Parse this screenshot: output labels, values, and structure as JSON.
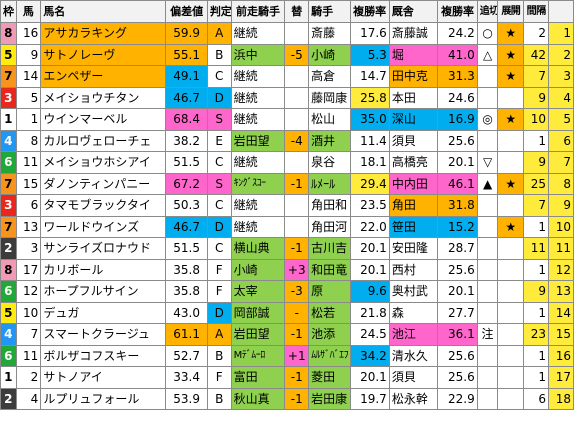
{
  "colors": {
    "waku": {
      "1": "#ffffff",
      "2": "#3c3c3c",
      "3": "#e8281e",
      "4": "#2196f3",
      "5": "#ffeb10",
      "6": "#22a838",
      "7": "#f7941d",
      "8": "#f09ab6"
    },
    "orange": "#ffb300",
    "cyan": "#00aeef",
    "pink": "#ff66cc",
    "green": "#8fd14f",
    "yellow": "#ffeb3b"
  },
  "headers": [
    "枠",
    "馬",
    "馬名",
    "偏差値",
    "判定",
    "前走騎手",
    "替",
    "騎手",
    "複勝率",
    "厩舎",
    "複勝率",
    "追切",
    "展開",
    "間隔",
    ""
  ],
  "rows": [
    {
      "waku": "8",
      "umaban": "16",
      "name": "アサカラキング",
      "hensa": "59.9",
      "hantei": "A",
      "zenso": "継続",
      "kae": "",
      "kishu": "斎藤",
      "k_rate": "17.6",
      "kyusha": "斎藤誠",
      "s_rate": "24.2",
      "oikiri": "○",
      "tenkai": "★",
      "kankaku": "2",
      "last": "1"
    },
    {
      "waku": "5",
      "umaban": "9",
      "name": "サトノレーヴ",
      "hensa": "55.1",
      "hantei": "B",
      "zenso": "浜中",
      "kae": "-5",
      "kishu": "小崎",
      "k_rate": "5.3",
      "kyusha": "堀",
      "s_rate": "41.0",
      "oikiri": "△",
      "tenkai": "★",
      "kankaku": "42",
      "last": "2"
    },
    {
      "waku": "7",
      "umaban": "14",
      "name": "エンペザー",
      "hensa": "49.1",
      "hantei": "C",
      "zenso": "継続",
      "kae": "",
      "kishu": "高倉",
      "k_rate": "14.7",
      "kyusha": "田中克",
      "s_rate": "31.3",
      "oikiri": "",
      "tenkai": "★",
      "kankaku": "7",
      "last": "3"
    },
    {
      "waku": "3",
      "umaban": "5",
      "name": "メイショウチタン",
      "hensa": "46.7",
      "hantei": "D",
      "zenso": "継続",
      "kae": "",
      "kishu": "藤岡康",
      "k_rate": "25.8",
      "kyusha": "本田",
      "s_rate": "24.6",
      "oikiri": "",
      "tenkai": "",
      "kankaku": "9",
      "last": "4"
    },
    {
      "waku": "1",
      "umaban": "1",
      "name": "ウインマーベル",
      "hensa": "68.4",
      "hantei": "S",
      "zenso": "継続",
      "kae": "",
      "kishu": "松山",
      "k_rate": "35.0",
      "kyusha": "深山",
      "s_rate": "16.9",
      "oikiri": "◎",
      "tenkai": "★",
      "kankaku": "10",
      "last": "5"
    },
    {
      "waku": "4",
      "umaban": "8",
      "name": "カルロヴェローチェ",
      "hensa": "38.2",
      "hantei": "E",
      "zenso": "岩田望",
      "kae": "-4",
      "kishu": "酒井",
      "k_rate": "11.4",
      "kyusha": "須貝",
      "s_rate": "25.6",
      "oikiri": "",
      "tenkai": "",
      "kankaku": "1",
      "last": "6"
    },
    {
      "waku": "6",
      "umaban": "11",
      "name": "メイショウホシアイ",
      "hensa": "51.5",
      "hantei": "C",
      "zenso": "継続",
      "kae": "",
      "kishu": "泉谷",
      "k_rate": "18.1",
      "kyusha": "高橋亮",
      "s_rate": "20.1",
      "oikiri": "▽",
      "tenkai": "",
      "kankaku": "9",
      "last": "7"
    },
    {
      "waku": "7",
      "umaban": "15",
      "name": "ダノンティンパニー",
      "hensa": "67.2",
      "hantei": "S",
      "zenso": "ｷﾝｸﾞｽｺｰ",
      "kae": "-1",
      "kishu": "ﾙﾒｰﾙ",
      "k_rate": "29.4",
      "kyusha": "中内田",
      "s_rate": "46.1",
      "oikiri": "▲",
      "tenkai": "★",
      "kankaku": "25",
      "last": "8"
    },
    {
      "waku": "3",
      "umaban": "6",
      "name": "タマモブラックタイ",
      "hensa": "50.3",
      "hantei": "C",
      "zenso": "継続",
      "kae": "",
      "kishu": "角田和",
      "k_rate": "23.5",
      "kyusha": "角田",
      "s_rate": "31.8",
      "oikiri": "",
      "tenkai": "",
      "kankaku": "7",
      "last": "9"
    },
    {
      "waku": "7",
      "umaban": "13",
      "name": "ワールドウインズ",
      "hensa": "46.7",
      "hantei": "D",
      "zenso": "継続",
      "kae": "",
      "kishu": "角田河",
      "k_rate": "22.0",
      "kyusha": "笹田",
      "s_rate": "15.2",
      "oikiri": "",
      "tenkai": "★",
      "kankaku": "1",
      "last": "10"
    },
    {
      "waku": "2",
      "umaban": "3",
      "name": "サンライズロナウド",
      "hensa": "51.5",
      "hantei": "C",
      "zenso": "横山典",
      "kae": "-1",
      "kishu": "古川吉",
      "k_rate": "20.1",
      "kyusha": "安田隆",
      "s_rate": "28.7",
      "oikiri": "",
      "tenkai": "",
      "kankaku": "11",
      "last": "11"
    },
    {
      "waku": "8",
      "umaban": "17",
      "name": "カリボール",
      "hensa": "35.8",
      "hantei": "F",
      "zenso": "小崎",
      "kae": "+3",
      "kishu": "和田竜",
      "k_rate": "20.1",
      "kyusha": "西村",
      "s_rate": "25.6",
      "oikiri": "",
      "tenkai": "",
      "kankaku": "1",
      "last": "12"
    },
    {
      "waku": "6",
      "umaban": "12",
      "name": "ホープフルサイン",
      "hensa": "35.8",
      "hantei": "F",
      "zenso": "太宰",
      "kae": "-3",
      "kishu": "原",
      "k_rate": "9.6",
      "kyusha": "奥村武",
      "s_rate": "20.1",
      "oikiri": "",
      "tenkai": "",
      "kankaku": "9",
      "last": "13"
    },
    {
      "waku": "5",
      "umaban": "10",
      "name": "デュガ",
      "hensa": "43.0",
      "hantei": "D",
      "zenso": "岡部誠",
      "kae": "-",
      "kishu": "松若",
      "k_rate": "21.8",
      "kyusha": "森",
      "s_rate": "27.7",
      "oikiri": "",
      "tenkai": "",
      "kankaku": "1",
      "last": "14"
    },
    {
      "waku": "4",
      "umaban": "7",
      "name": "スマートクラージュ",
      "hensa": "61.1",
      "hantei": "A",
      "zenso": "岩田望",
      "kae": "-1",
      "kishu": "池添",
      "k_rate": "24.5",
      "kyusha": "池江",
      "s_rate": "36.1",
      "oikiri": "注",
      "tenkai": "",
      "kankaku": "23",
      "last": "15"
    },
    {
      "waku": "6",
      "umaban": "11",
      "name": "ボルザコフスキー",
      "hensa": "52.7",
      "hantei": "B",
      "zenso": "Mﾃﾞﾑｰﾛ",
      "kae": "+1",
      "kishu": "ﾑﾙｻﾞﾊﾞｴﾌ",
      "k_rate": "34.2",
      "kyusha": "清水久",
      "s_rate": "25.6",
      "oikiri": "",
      "tenkai": "",
      "kankaku": "1",
      "last": "16"
    },
    {
      "waku": "1",
      "umaban": "2",
      "name": "サトノアイ",
      "hensa": "33.4",
      "hantei": "F",
      "zenso": "富田",
      "kae": "-1",
      "kishu": "菱田",
      "k_rate": "20.1",
      "kyusha": "須貝",
      "s_rate": "25.6",
      "oikiri": "",
      "tenkai": "",
      "kankaku": "1",
      "last": "17"
    },
    {
      "waku": "2",
      "umaban": "4",
      "name": "ルプリュフォール",
      "hensa": "53.9",
      "hantei": "B",
      "zenso": "秋山真",
      "kae": "-1",
      "kishu": "岩田康",
      "k_rate": "19.7",
      "kyusha": "松永幹",
      "s_rate": "22.9",
      "oikiri": "",
      "tenkai": "",
      "kankaku": "6",
      "last": "18"
    }
  ]
}
